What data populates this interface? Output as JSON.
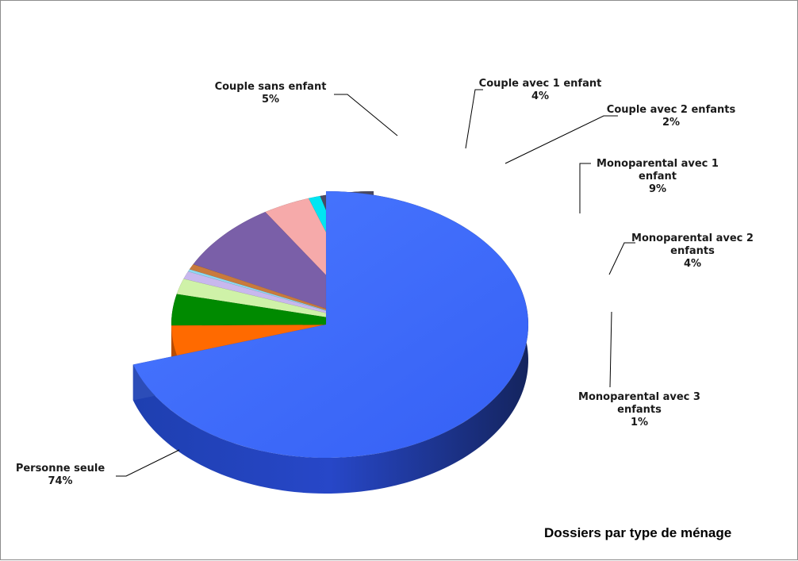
{
  "chart_data": {
    "type": "pie",
    "title": "Dossiers par type de ménage",
    "slices": [
      {
        "name": "Personne seule",
        "value_label": "74%",
        "value": 74,
        "color": "#3D6BFF",
        "exploded": false
      },
      {
        "name": "Couple sans enfant",
        "value_label": "5%",
        "value": 5,
        "color": "#FF6A00",
        "exploded": true
      },
      {
        "name": "Couple avec 1 enfant",
        "value_label": "4%",
        "value": 4,
        "color": "#008A00",
        "exploded": true
      },
      {
        "name": "Couple avec 2 enfants",
        "value_label": "2%",
        "value": 2,
        "color": "#CFF2A8",
        "exploded": true
      },
      {
        "name": "",
        "value_label": "",
        "value": 1,
        "color": "#C8B8EE",
        "exploded": true
      },
      {
        "name": "",
        "value_label": "",
        "value": 0.3,
        "color": "#8ED8F0",
        "exploded": true
      },
      {
        "name": "",
        "value_label": "",
        "value": 0.7,
        "color": "#C97A3C",
        "exploded": true
      },
      {
        "name": "Monoparental avec 1 enfant",
        "value_label": "9%",
        "value": 9,
        "color": "#7A5FA8",
        "exploded": true
      },
      {
        "name": "Monoparental avec 2 enfants",
        "value_label": "4%",
        "value": 4,
        "color": "#F6AAAA",
        "exploded": true
      },
      {
        "name": "Monoparental avec 3 enfants",
        "value_label": "1%",
        "value": 1,
        "color": "#00E5F2",
        "exploded": true
      },
      {
        "name": "",
        "value_label": "",
        "value": 4.5,
        "color": "#4A4A62",
        "exploded": true
      }
    ],
    "labels": [
      {
        "key": "couple_sans",
        "lines": [
          "Couple sans enfant",
          "5%"
        ]
      },
      {
        "key": "couple_1",
        "lines": [
          "Couple avec 1 enfant",
          "4%"
        ]
      },
      {
        "key": "couple_2",
        "lines": [
          "Couple avec 2 enfants",
          "2%"
        ]
      },
      {
        "key": "mono_1",
        "lines": [
          "Monoparental avec 1",
          "enfant",
          "9%"
        ]
      },
      {
        "key": "mono_2",
        "lines": [
          "Monoparental avec 2",
          "enfants",
          "4%"
        ]
      },
      {
        "key": "mono_3",
        "lines": [
          "Monoparental avec 3",
          "enfants",
          "1%"
        ]
      },
      {
        "key": "personne",
        "lines": [
          "Personne seule",
          "74%"
        ]
      }
    ],
    "legend": "none",
    "grid": false,
    "style": "3d-exploded-pie"
  }
}
